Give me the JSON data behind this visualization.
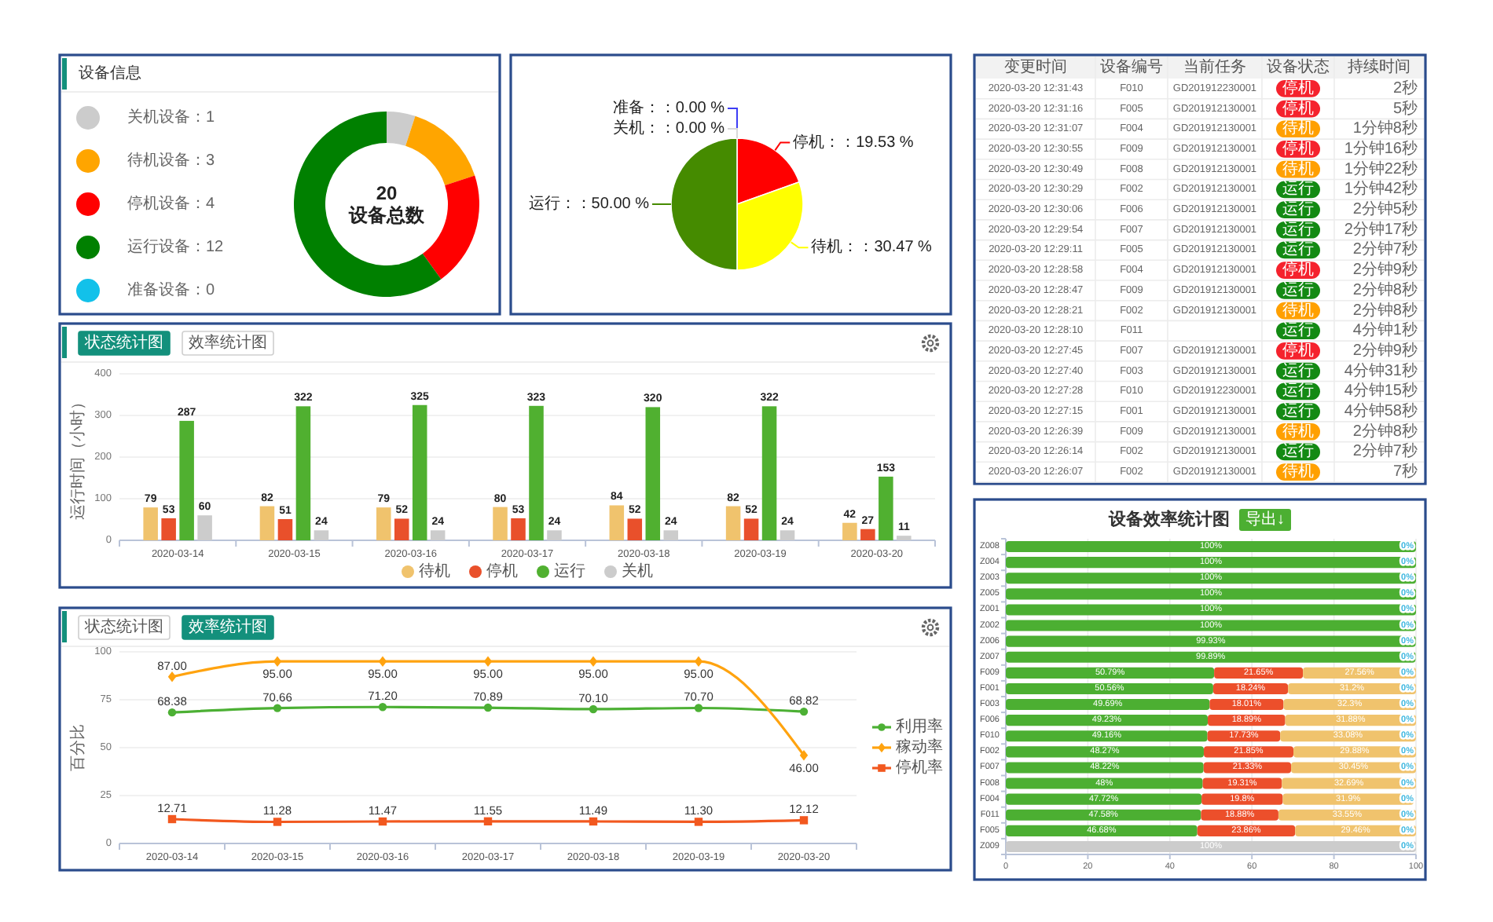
{
  "chart_data": [
    {
      "type": "donut",
      "title": "设备信息",
      "categories": [
        "关机设备：1",
        "待机设备：3",
        "停机设备：4",
        "运行设备：12",
        "准备设备：0"
      ],
      "values": [
        1,
        3,
        4,
        12,
        0
      ],
      "colors": [
        "#cccccc",
        "#ffa500",
        "#ff0000",
        "#008000",
        "#12c1ea"
      ],
      "legend": "left",
      "annotations": [
        "20",
        "设备总数"
      ]
    },
    {
      "type": "pie",
      "categories": [
        "停机：：19.53 %",
        "待机：：30.47 %",
        "运行：：50.00 %",
        "准备：：0.00 %",
        "关机：：0.00 %"
      ],
      "values": [
        19.53,
        30.47,
        50.0,
        0,
        0
      ],
      "colors": [
        "#ff0000",
        "#ffff00",
        "#458b00",
        "#3d3df5",
        "#d9d9d9"
      ]
    },
    {
      "type": "other",
      "categories": [
        "变更时间",
        "设备编号",
        "当前任务",
        "设备状态",
        "持续时间"
      ],
      "cell_labels": [
        [
          "2020-03-20 12:31:43",
          "F010",
          "GD201912230001",
          "停机",
          "2秒"
        ],
        [
          "2020-03-20 12:31:16",
          "F005",
          "GD201912130001",
          "停机",
          "5秒"
        ],
        [
          "2020-03-20 12:31:07",
          "F004",
          "GD201912130001",
          "待机",
          "1分钟8秒"
        ],
        [
          "2020-03-20 12:30:55",
          "F009",
          "GD201912130001",
          "停机",
          "1分钟16秒"
        ],
        [
          "2020-03-20 12:30:49",
          "F008",
          "GD201912130001",
          "待机",
          "1分钟22秒"
        ],
        [
          "2020-03-20 12:30:29",
          "F002",
          "GD201912130001",
          "运行",
          "1分钟42秒"
        ],
        [
          "2020-03-20 12:30:06",
          "F006",
          "GD201912130001",
          "运行",
          "2分钟5秒"
        ],
        [
          "2020-03-20 12:29:54",
          "F007",
          "GD201912130001",
          "运行",
          "2分钟17秒"
        ],
        [
          "2020-03-20 12:29:11",
          "F005",
          "GD201912130001",
          "运行",
          "2分钟7秒"
        ],
        [
          "2020-03-20 12:28:58",
          "F004",
          "GD201912130001",
          "停机",
          "2分钟9秒"
        ],
        [
          "2020-03-20 12:28:47",
          "F009",
          "GD201912130001",
          "运行",
          "2分钟8秒"
        ],
        [
          "2020-03-20 12:28:21",
          "F002",
          "GD201912130001",
          "待机",
          "2分钟8秒"
        ],
        [
          "2020-03-20 12:28:10",
          "F011",
          null,
          "运行",
          "4分钟1秒"
        ],
        [
          "2020-03-20 12:27:45",
          "F007",
          "GD201912130001",
          "停机",
          "2分钟9秒"
        ],
        [
          "2020-03-20 12:27:40",
          "F003",
          "GD201912130001",
          "运行",
          "4分钟31秒"
        ],
        [
          "2020-03-20 12:27:28",
          "F010",
          "GD201912230001",
          "运行",
          "4分钟15秒"
        ],
        [
          "2020-03-20 12:27:15",
          "F001",
          "GD201912130001",
          "运行",
          "4分钟58秒"
        ],
        [
          "2020-03-20 12:26:39",
          "F009",
          "GD201912130001",
          "待机",
          "2分钟8秒"
        ],
        [
          "2020-03-20 12:26:14",
          "F002",
          "GD201912130001",
          "运行",
          "2分钟7秒"
        ],
        [
          "2020-03-20 12:26:07",
          "F002",
          "GD201912130001",
          "待机",
          "7秒"
        ]
      ],
      "colors": [
        [
          null,
          null,
          null,
          "#f5222d",
          null
        ],
        [
          null,
          null,
          null,
          "#f5222d",
          null
        ],
        [
          null,
          null,
          null,
          "#ffa000",
          null
        ],
        [
          null,
          null,
          null,
          "#f5222d",
          null
        ],
        [
          null,
          null,
          null,
          "#ffa000",
          null
        ],
        [
          null,
          null,
          null,
          "#138a13",
          null
        ],
        [
          null,
          null,
          null,
          "#138a13",
          null
        ],
        [
          null,
          null,
          null,
          "#138a13",
          null
        ],
        [
          null,
          null,
          null,
          "#138a13",
          null
        ],
        [
          null,
          null,
          null,
          "#f5222d",
          null
        ],
        [
          null,
          null,
          null,
          "#138a13",
          null
        ],
        [
          null,
          null,
          null,
          "#ffa000",
          null
        ],
        [
          null,
          null,
          null,
          "#138a13",
          null
        ],
        [
          null,
          null,
          null,
          "#f5222d",
          null
        ],
        [
          null,
          null,
          null,
          "#138a13",
          null
        ],
        [
          null,
          null,
          null,
          "#138a13",
          null
        ],
        [
          null,
          null,
          null,
          "#138a13",
          null
        ],
        [
          null,
          null,
          null,
          "#ffa000",
          null
        ],
        [
          null,
          null,
          null,
          "#138a13",
          null
        ],
        [
          null,
          null,
          null,
          "#ffa000",
          null
        ]
      ]
    },
    {
      "type": "bar",
      "title": "状态统计图",
      "annotations": [
        "效率统计图"
      ],
      "ylabel": "运行时间（小时）",
      "categories": [
        "2020-03-14",
        "2020-03-15",
        "2020-03-16",
        "2020-03-17",
        "2020-03-18",
        "2020-03-19",
        "2020-03-20"
      ],
      "series": [
        {
          "name": "待机",
          "color": "#f0c36d",
          "values": [
            79,
            82,
            79,
            80,
            84,
            82,
            42
          ]
        },
        {
          "name": "停机",
          "color": "#e9502b",
          "values": [
            53,
            51,
            52,
            53,
            52,
            52,
            27
          ]
        },
        {
          "name": "运行",
          "color": "#50b030",
          "values": [
            287,
            322,
            325,
            323,
            320,
            322,
            153
          ]
        },
        {
          "name": "关机",
          "color": "#cccccc",
          "values": [
            60,
            24,
            24,
            24,
            24,
            24,
            11
          ]
        }
      ],
      "ylim": [
        0,
        400
      ],
      "yticks": [
        0,
        100,
        200,
        300,
        400
      ],
      "grid": "y",
      "legend": "bottom",
      "data_labels": true
    },
    {
      "type": "bar",
      "orientation": "horizontal",
      "stacked": true,
      "title": "设备效率统计图",
      "annotations": [
        "导出↓"
      ],
      "categories": [
        "Z008",
        "Z004",
        "Z003",
        "Z005",
        "Z001",
        "Z002",
        "Z006",
        "Z007",
        "F009",
        "F001",
        "F003",
        "F006",
        "F010",
        "F002",
        "F007",
        "F008",
        "F004",
        "F011",
        "F005",
        "Z009"
      ],
      "series": [
        {
          "color": "#4caf32",
          "values": [
            100,
            100,
            100,
            100,
            100,
            100,
            99.93,
            99.89,
            50.79,
            50.56,
            49.69,
            49.23,
            49.16,
            48.27,
            48.22,
            48,
            47.72,
            47.58,
            46.68,
            0
          ],
          "value_labels": [
            "100%",
            "100%",
            "100%",
            "100%",
            "100%",
            "100%",
            "99.93%",
            "99.89%",
            "50.79%",
            "50.56%",
            "49.69%",
            "49.23%",
            "49.16%",
            "48.27%",
            "48.22%",
            "48%",
            "47.72%",
            "47.58%",
            "46.68%",
            null
          ]
        },
        {
          "color": "#ec4f2b",
          "values": [
            0,
            0,
            0,
            0,
            0,
            0,
            0,
            0,
            21.65,
            18.24,
            18.01,
            18.89,
            17.73,
            21.85,
            21.33,
            19.31,
            19.8,
            18.88,
            23.86,
            0
          ],
          "value_labels": [
            null,
            null,
            null,
            null,
            null,
            null,
            null,
            null,
            "21.65%",
            "18.24%",
            "18.01%",
            "18.89%",
            "17.73%",
            "21.85%",
            "21.33%",
            "19.31%",
            "19.8%",
            "18.88%",
            "23.86%",
            null
          ]
        },
        {
          "color": "#f0c36d",
          "values": [
            0,
            0,
            0,
            0,
            0,
            0,
            0,
            0,
            27.56,
            31.2,
            32.3,
            31.88,
            33.08,
            29.88,
            30.45,
            32.69,
            31.9,
            33.55,
            29.46,
            0
          ],
          "value_labels": [
            null,
            null,
            null,
            null,
            null,
            null,
            null,
            null,
            "27.56%",
            "31.2%",
            "32.3%",
            "31.88%",
            "33.08%",
            "29.88%",
            "30.45%",
            "32.69%",
            "31.9%",
            "33.55%",
            "29.46%",
            null
          ]
        },
        {
          "color": "#cccccc",
          "values": [
            0,
            0,
            0,
            0,
            0,
            0,
            0,
            0,
            0,
            0,
            0,
            0,
            0,
            0,
            0,
            0,
            0,
            0,
            0,
            100
          ],
          "value_labels": [
            null,
            null,
            null,
            null,
            null,
            null,
            null,
            null,
            null,
            null,
            null,
            null,
            null,
            null,
            null,
            null,
            null,
            null,
            null,
            "100%"
          ]
        },
        {
          "color": "#3fb8e0",
          "values": [
            0,
            0,
            0,
            0,
            0,
            0,
            0,
            0,
            0,
            0,
            0,
            0,
            0,
            0,
            0,
            0,
            0,
            0,
            0,
            0
          ],
          "value_labels": [
            "0%",
            "0%",
            "0%",
            "0%",
            "0%",
            "0%",
            "0%",
            "0%",
            "0%",
            "0%",
            "0%",
            "0%",
            "0%",
            "0%",
            "0%",
            "0%",
            "0%",
            "0%",
            "0%",
            "0%"
          ]
        }
      ],
      "xlim": [
        0,
        100
      ],
      "xticks": [
        0,
        20,
        40,
        60,
        80,
        100
      ],
      "grid": "x"
    },
    {
      "type": "line",
      "title": "效率统计图",
      "annotations": [
        "状态统计图"
      ],
      "ylabel": "百分比",
      "categories": [
        "2020-03-14",
        "2020-03-15",
        "2020-03-16",
        "2020-03-17",
        "2020-03-18",
        "2020-03-19",
        "2020-03-20"
      ],
      "series": [
        {
          "name": "利用率",
          "color": "#4cb034",
          "marker": "circle",
          "values": [
            68.38,
            70.66,
            71.2,
            70.89,
            70.1,
            70.7,
            68.82
          ],
          "value_labels": [
            "68.38",
            "70.66",
            "71.20",
            "70.89",
            "70.10",
            "70.70",
            "68.82"
          ]
        },
        {
          "name": "稼动率",
          "color": "#ffa30f",
          "marker": "diamond",
          "values": [
            87.0,
            95.0,
            95.0,
            95.0,
            95.0,
            95.0,
            46.0
          ],
          "value_labels": [
            "87.00",
            "95.00",
            "95.00",
            "95.00",
            "95.00",
            "95.00",
            "46.00"
          ]
        },
        {
          "name": "停机率",
          "color": "#f2581f",
          "marker": "square",
          "values": [
            12.71,
            11.28,
            11.47,
            11.55,
            11.49,
            11.3,
            12.12
          ],
          "value_labels": [
            "12.71",
            "11.28",
            "11.47",
            "11.55",
            "11.49",
            "11.30",
            "12.12"
          ]
        }
      ],
      "ylim": [
        0,
        100
      ],
      "yticks": [
        0,
        25,
        50,
        75,
        100
      ],
      "grid": "y",
      "legend": "right"
    }
  ]
}
